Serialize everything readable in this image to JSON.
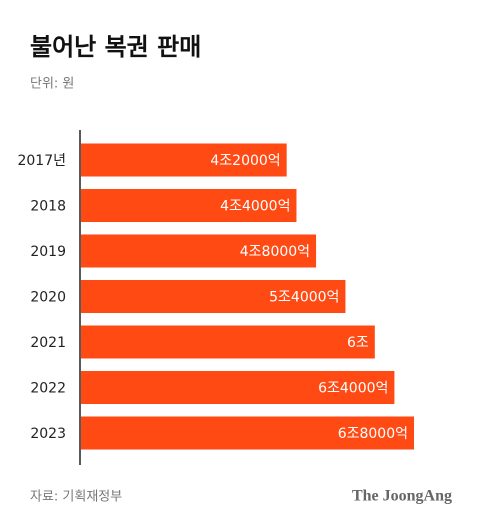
{
  "chart_data": {
    "type": "hbar",
    "title": "불어난 복권 판매",
    "subtitle": "단위: 원",
    "categories": [
      "2017년",
      "2018",
      "2019",
      "2020",
      "2021",
      "2022",
      "2023"
    ],
    "values": [
      4200000000000,
      4400000000000,
      4800000000000,
      5400000000000,
      6000000000000,
      6400000000000,
      6800000000000
    ],
    "value_labels": [
      "4조2000억",
      "4조4000억",
      "4조8000억",
      "5조4000억",
      "6조",
      "6조4000억",
      "6조8000억"
    ],
    "color": "#ff4a14",
    "source": "자료: 기획재정부",
    "brand": "The JoongAng"
  }
}
